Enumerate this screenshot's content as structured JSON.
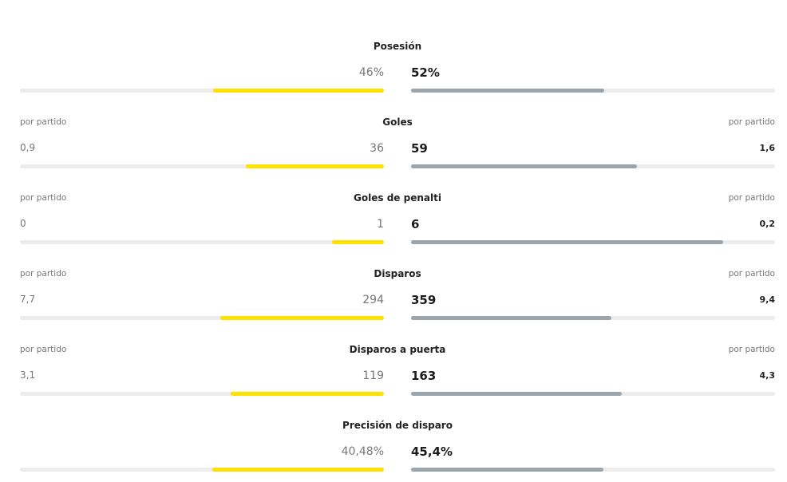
{
  "stats": [
    {
      "title": "Posesión",
      "left": {
        "value": 46,
        "label": "46%"
      },
      "right": {
        "value": 52,
        "label": "52%"
      }
    },
    {
      "title": "Goles",
      "left": 36,
      "right": 59,
      "per_game_left_label": "por partido",
      "per_game_right_label": "por partido",
      "per_game_left": {
        "value": 0.9,
        "label": "0,9"
      },
      "per_game_right": {
        "value": 1.6,
        "label": "1,6"
      }
    },
    {
      "title": "Goles de penalti",
      "left": 1,
      "right": 6,
      "per_game_left_label": "por partido",
      "per_game_right_label": "por partido",
      "per_game_left": 0,
      "per_game_right": {
        "value": 0.2,
        "label": "0,2"
      }
    },
    {
      "title": "Disparos",
      "left": 294,
      "right": 359,
      "per_game_left_label": "por partido",
      "per_game_right_label": "por partido",
      "per_game_left": {
        "value": 7.7,
        "label": "7,7"
      },
      "per_game_right": {
        "value": 9.4,
        "label": "9,4"
      }
    },
    {
      "title": "Disparos a puerta",
      "left": 119,
      "right": 163,
      "per_game_left_label": "por partido",
      "per_game_right_label": "por partido",
      "per_game_left": {
        "value": 3.1,
        "label": "3,1"
      },
      "per_game_right": {
        "value": 4.3,
        "label": "4,3"
      }
    },
    {
      "title": "Precisión de disparo",
      "left": {
        "value": 40.48,
        "label": "40,48%"
      },
      "right": {
        "value": 45.4,
        "label": "45,4%"
      }
    }
  ]
}
